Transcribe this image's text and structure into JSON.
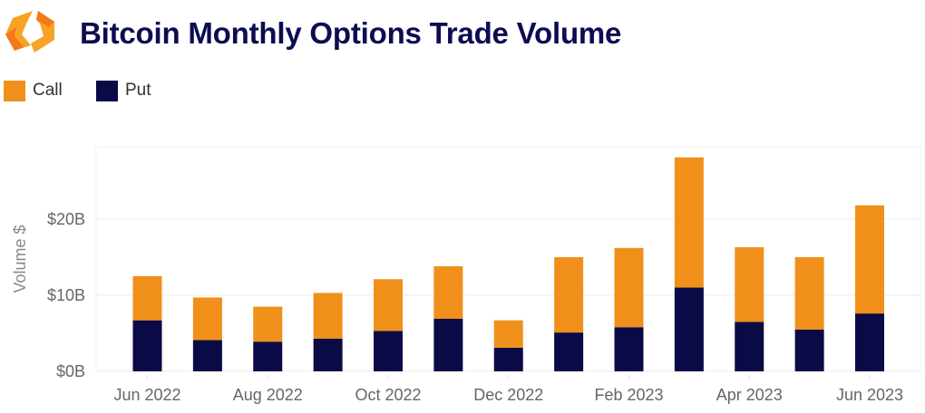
{
  "title": "Bitcoin Monthly Options Trade Volume",
  "logo": {
    "icon": "hexagon-brackets-logo-icon",
    "colors": [
      "#F7A325",
      "#F27A1A"
    ]
  },
  "colors": {
    "call": "#F0901A",
    "put": "#0A0A46",
    "title": "#0C0C52",
    "grid": "#EBEBEB"
  },
  "legend": [
    {
      "label": "Call",
      "color": "#F0901A"
    },
    {
      "label": "Put",
      "color": "#0A0A46"
    }
  ],
  "chart_data": {
    "type": "bar",
    "stacked": true,
    "title": "Bitcoin Monthly Options Trade Volume",
    "xlabel": "",
    "ylabel": "Volume $",
    "ylim": [
      0,
      29.5
    ],
    "yunit": "$B",
    "yticks": [
      0,
      10,
      20
    ],
    "ytick_labels": [
      "$0B",
      "$10B",
      "$20B"
    ],
    "grid": true,
    "legend_position": "top-left",
    "categories": [
      "Jun 2022",
      "Jul 2022",
      "Aug 2022",
      "Sep 2022",
      "Oct 2022",
      "Nov 2022",
      "Dec 2022",
      "Jan 2023",
      "Feb 2023",
      "Mar 2023",
      "Apr 2023",
      "May 2023",
      "Jun 2023"
    ],
    "xtick_labels": [
      "Jun 2022",
      "Aug 2022",
      "Oct 2022",
      "Dec 2022",
      "Feb 2023",
      "Apr 2023",
      "Jun 2023"
    ],
    "xtick_indices": [
      0,
      2,
      4,
      6,
      8,
      10,
      12
    ],
    "series": [
      {
        "name": "Put",
        "color": "#0A0A46",
        "values": [
          6.7,
          4.1,
          3.9,
          4.3,
          5.3,
          6.9,
          3.1,
          5.1,
          5.8,
          11.0,
          6.5,
          5.5,
          7.6
        ]
      },
      {
        "name": "Call",
        "color": "#F0901A",
        "values": [
          5.8,
          5.6,
          4.6,
          6.0,
          6.8,
          6.9,
          3.6,
          9.9,
          10.4,
          17.1,
          9.8,
          9.5,
          14.2
        ]
      }
    ]
  }
}
